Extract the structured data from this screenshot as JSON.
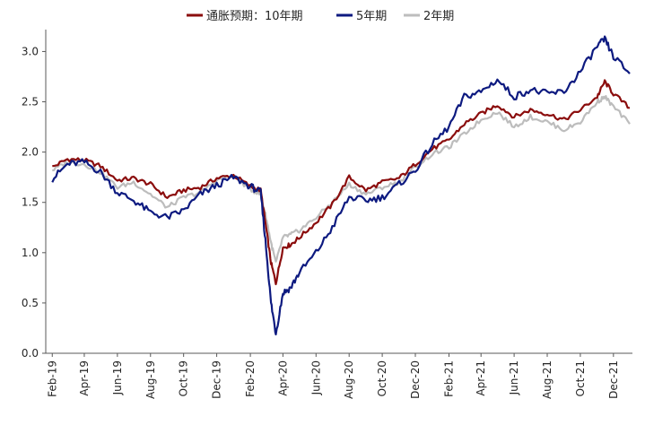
{
  "chart_data": {
    "type": "line",
    "title": "",
    "xlabel": "",
    "ylabel": "",
    "ylim": [
      0.0,
      3.2
    ],
    "yticks": [
      "0.0",
      "0.5",
      "1.0",
      "1.5",
      "2.0",
      "2.5",
      "3.0"
    ],
    "grid": false,
    "legend_position": "top-center",
    "x_tick_labels": [
      "Feb-19",
      "Apr-19",
      "Jun-19",
      "Aug-19",
      "Oct-19",
      "Dec-19",
      "Feb-20",
      "Apr-20",
      "Jun-20",
      "Aug-20",
      "Oct-20",
      "Dec-20",
      "Feb-21",
      "Apr-21",
      "Jun-21",
      "Aug-21",
      "Oct-21",
      "Dec-21"
    ],
    "x": [
      "2019-02-01",
      "2019-03-01",
      "2019-04-01",
      "2019-05-01",
      "2019-06-01",
      "2019-07-01",
      "2019-08-01",
      "2019-09-01",
      "2019-10-01",
      "2019-11-01",
      "2019-12-01",
      "2020-01-01",
      "2020-02-01",
      "2020-02-20",
      "2020-03-01",
      "2020-03-10",
      "2020-03-19",
      "2020-04-01",
      "2020-04-15",
      "2020-05-01",
      "2020-06-01",
      "2020-07-01",
      "2020-08-01",
      "2020-09-01",
      "2020-10-01",
      "2020-11-01",
      "2020-12-01",
      "2021-01-01",
      "2021-02-01",
      "2021-03-01",
      "2021-04-01",
      "2021-05-01",
      "2021-06-01",
      "2021-07-01",
      "2021-08-01",
      "2021-09-01",
      "2021-10-01",
      "2021-11-01",
      "2021-11-15",
      "2021-12-01",
      "2021-12-31"
    ],
    "series": [
      {
        "name": "通胀预期：10年期",
        "color": "#8b0d0d",
        "values": [
          1.85,
          1.93,
          1.92,
          1.86,
          1.72,
          1.74,
          1.68,
          1.55,
          1.62,
          1.65,
          1.74,
          1.77,
          1.66,
          1.62,
          1.25,
          0.9,
          0.7,
          1.05,
          1.08,
          1.15,
          1.3,
          1.48,
          1.75,
          1.62,
          1.7,
          1.74,
          1.88,
          2.03,
          2.12,
          2.28,
          2.38,
          2.47,
          2.35,
          2.42,
          2.38,
          2.32,
          2.42,
          2.55,
          2.7,
          2.58,
          2.44
        ]
      },
      {
        "name": "5年期",
        "color": "#0d1a80",
        "values": [
          1.73,
          1.88,
          1.9,
          1.8,
          1.6,
          1.52,
          1.4,
          1.35,
          1.42,
          1.58,
          1.67,
          1.75,
          1.66,
          1.6,
          1.05,
          0.5,
          0.2,
          0.6,
          0.65,
          0.8,
          1.0,
          1.25,
          1.55,
          1.52,
          1.55,
          1.68,
          1.82,
          2.08,
          2.25,
          2.55,
          2.6,
          2.72,
          2.55,
          2.62,
          2.58,
          2.6,
          2.8,
          3.05,
          3.12,
          2.95,
          2.78
        ]
      },
      {
        "name": "2年期",
        "color": "#bdbdbd",
        "values": [
          1.82,
          1.9,
          1.88,
          1.8,
          1.65,
          1.7,
          1.58,
          1.45,
          1.55,
          1.6,
          1.72,
          1.76,
          1.63,
          1.58,
          1.35,
          1.1,
          0.9,
          1.15,
          1.18,
          1.22,
          1.35,
          1.5,
          1.68,
          1.58,
          1.65,
          1.7,
          1.85,
          1.98,
          2.05,
          2.18,
          2.32,
          2.4,
          2.25,
          2.35,
          2.3,
          2.22,
          2.3,
          2.5,
          2.55,
          2.45,
          2.28
        ]
      }
    ]
  }
}
